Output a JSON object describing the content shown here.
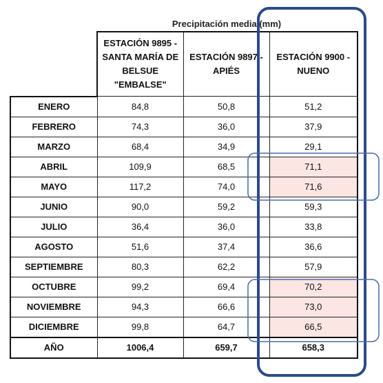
{
  "title": "Precipitación media (mm)",
  "columns": [
    "ESTACIÓN 9895 - SANTA MARÍA DE BELSUE \"EMBALSE\"",
    "ESTACIÓN 9897 - APIÉS",
    "ESTACIÓN 9900 - NUENO"
  ],
  "rows": [
    [
      "ENERO",
      "84,8",
      "50,8",
      "51,2"
    ],
    [
      "FEBRERO",
      "74,3",
      "36,0",
      "37,9"
    ],
    [
      "MARZO",
      "68,4",
      "34,9",
      "29,1"
    ],
    [
      "ABRIL",
      "109,9",
      "68,5",
      "71,1"
    ],
    [
      "MAYO",
      "117,2",
      "74,0",
      "71,6"
    ],
    [
      "JUNIO",
      "90,0",
      "59,2",
      "59,3"
    ],
    [
      "JULIO",
      "36,4",
      "36,0",
      "33,8"
    ],
    [
      "AGOSTO",
      "51,6",
      "37,4",
      "36,6"
    ],
    [
      "SEPTIEMBRE",
      "80,3",
      "62,2",
      "57,9"
    ],
    [
      "OCTUBRE",
      "99,2",
      "69,4",
      "70,2"
    ],
    [
      "NOVIEMBRE",
      "94,3",
      "66,6",
      "73,0"
    ],
    [
      "DICIEMBRE",
      "99,8",
      "64,7",
      "66,5"
    ],
    [
      "AÑO",
      "1006,4",
      "659,7",
      "658,3"
    ]
  ]
}
